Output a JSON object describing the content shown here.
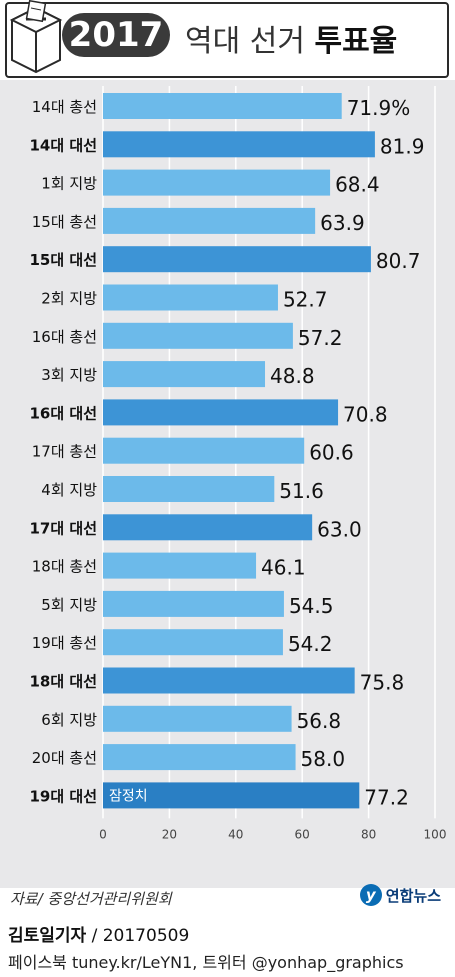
{
  "header": {
    "year": "2017",
    "title_light": "역대 선거",
    "title_bold": "투표율"
  },
  "colors": {
    "bar_light": "#6cbaea",
    "bar_dark": "#3d94d6",
    "bar_highlight": "#2a7fc4",
    "panel_bg": "#e8e8ea"
  },
  "chart_data": {
    "type": "bar",
    "orientation": "horizontal",
    "unit": "%",
    "xlim": [
      0,
      100
    ],
    "ticks": [
      "0",
      "20",
      "40",
      "60",
      "80",
      "100"
    ],
    "grid": true,
    "categories": [
      "14대 총선",
      "14대 대선",
      "1회 지방",
      "15대 총선",
      "15대 대선",
      "2회 지방",
      "16대 총선",
      "3회 지방",
      "16대 대선",
      "17대 총선",
      "4회 지방",
      "17대 대선",
      "18대 총선",
      "5회 지방",
      "19대 총선",
      "18대 대선",
      "6회 지방",
      "20대 총선",
      "19대 대선"
    ],
    "values": [
      71.9,
      81.9,
      68.4,
      63.9,
      80.7,
      52.7,
      57.2,
      48.8,
      70.8,
      60.6,
      51.6,
      63.0,
      46.1,
      54.5,
      54.2,
      75.8,
      56.8,
      58.0,
      77.2
    ],
    "value_labels": [
      "71.9%",
      "81.9",
      "68.4",
      "63.9",
      "80.7",
      "52.7",
      "57.2",
      "48.8",
      "70.8",
      "60.6",
      "51.6",
      "63.0",
      "46.1",
      "54.5",
      "54.2",
      "75.8",
      "56.8",
      "58.0",
      "77.2"
    ],
    "presidential": [
      false,
      true,
      false,
      false,
      true,
      false,
      false,
      false,
      true,
      false,
      false,
      true,
      false,
      false,
      false,
      true,
      false,
      false,
      true
    ],
    "annotation": "잠정치"
  },
  "footer": {
    "source": "자료/ 중앙선거관리위원회",
    "logo_mark": "y",
    "logo_text": "연합뉴스",
    "author": "김토일기자",
    "date": " / 20170509",
    "social": "페이스북 tuney.kr/LeYN1, 트위터 @yonhap_graphics"
  }
}
